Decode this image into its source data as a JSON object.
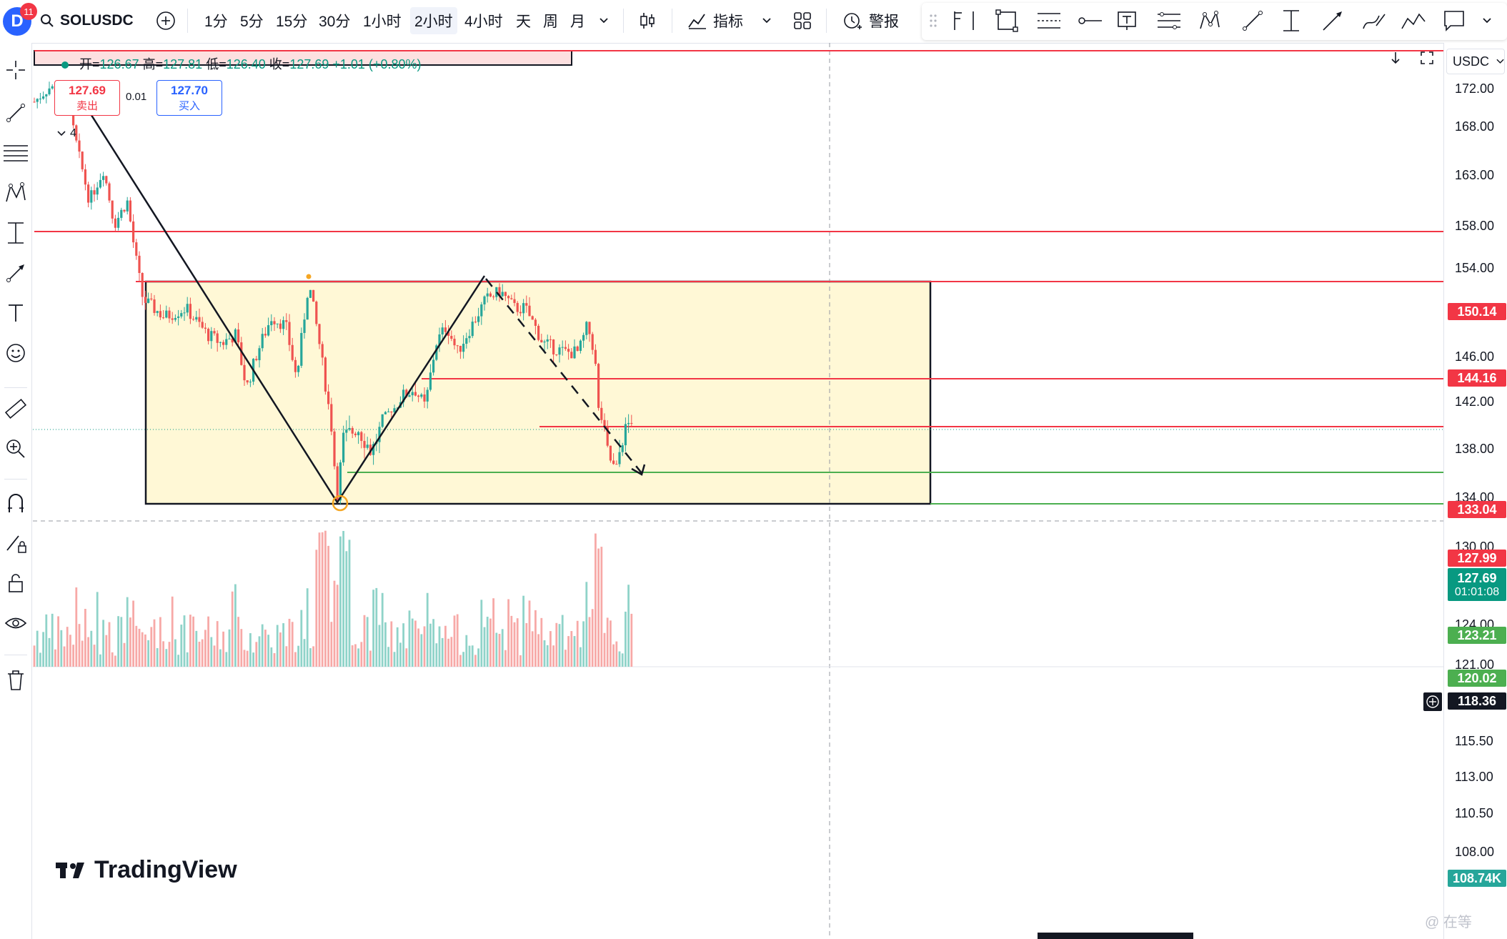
{
  "topbar": {
    "avatar_letter": "D",
    "notif_count": "11",
    "symbol": "SOLUSDC",
    "intervals": [
      "1分",
      "5分",
      "15分",
      "30分",
      "1小时",
      "2小时",
      "4小时",
      "天",
      "周",
      "月"
    ],
    "active_interval": "2小时",
    "indicators_label": "指标",
    "alert_label": "警报"
  },
  "legend": {
    "open_label": "开=",
    "open": "126.67",
    "high_label": "高=",
    "high": "127.81",
    "low_label": "低=",
    "low": "126.40",
    "close_label": "收=",
    "close": "127.69",
    "change": "+1.01 (+0.80%)"
  },
  "trade": {
    "sell_price": "127.69",
    "sell_label": "卖出",
    "spread": "0.01",
    "buy_price": "127.70",
    "buy_label": "买入",
    "lot": "4"
  },
  "currency": "USDC",
  "price_ticks": [
    "172.00",
    "168.00",
    "163.00",
    "158.00",
    "154.00",
    "146.00",
    "142.00",
    "138.00",
    "134.00",
    "130.00",
    "124.00",
    "121.00",
    "115.50",
    "113.00",
    "110.50",
    "108.00"
  ],
  "price_labels": {
    "l150": "150.14",
    "l144": "144.16",
    "l133": "133.04",
    "l128": "127.99",
    "last": "127.69",
    "countdown": "01:01:08",
    "l123": "123.21",
    "l120": "120.02",
    "crosshair": "118.36",
    "volume": "108.74K"
  },
  "colors": {
    "up": "#26a69a",
    "down": "#ef5350",
    "level": "#f23645",
    "support": "#4caf50",
    "zone": "#fff8d6"
  },
  "logo_text": "TradingView",
  "watermark": "@ 在等"
}
